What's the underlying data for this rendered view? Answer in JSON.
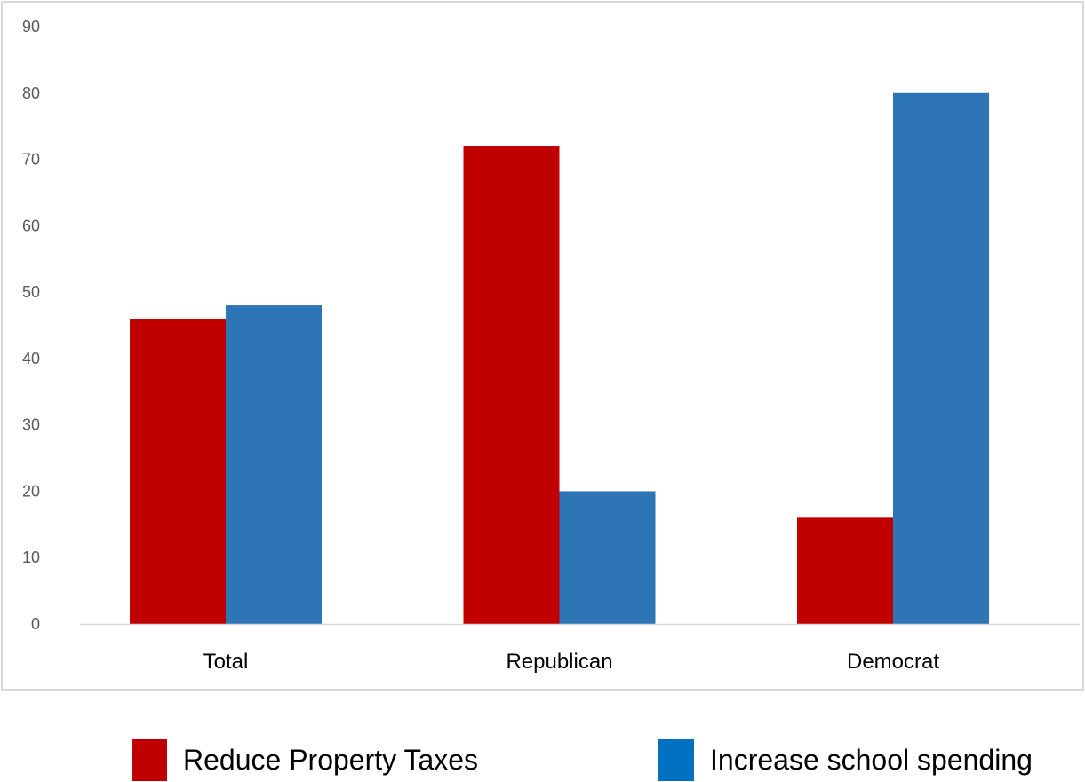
{
  "chart_data": {
    "type": "bar",
    "categories": [
      "Total",
      "Republican",
      "Democrat"
    ],
    "series": [
      {
        "name": "Reduce Property Taxes",
        "values": [
          46,
          72,
          16
        ],
        "color": "#C00000"
      },
      {
        "name": "Increase school spending",
        "values": [
          48,
          20,
          80
        ],
        "color": "#2E75B6"
      }
    ],
    "ylim": [
      0,
      90
    ],
    "yticks": [
      0,
      10,
      20,
      30,
      40,
      50,
      60,
      70,
      80,
      90
    ],
    "grid": false,
    "legend_position": "bottom",
    "legend_swatch_colors": [
      "#C00000",
      "#0070C0"
    ],
    "title": "",
    "xlabel": "",
    "ylabel": ""
  }
}
